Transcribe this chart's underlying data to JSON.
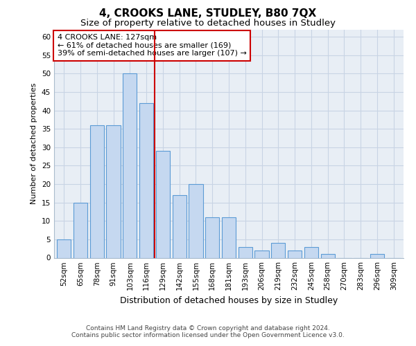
{
  "title1": "4, CROOKS LANE, STUDLEY, B80 7QX",
  "title2": "Size of property relative to detached houses in Studley",
  "xlabel": "Distribution of detached houses by size in Studley",
  "ylabel": "Number of detached properties",
  "categories": [
    "52sqm",
    "65sqm",
    "78sqm",
    "91sqm",
    "103sqm",
    "116sqm",
    "129sqm",
    "142sqm",
    "155sqm",
    "168sqm",
    "181sqm",
    "193sqm",
    "206sqm",
    "219sqm",
    "232sqm",
    "245sqm",
    "258sqm",
    "270sqm",
    "283sqm",
    "296sqm",
    "309sqm"
  ],
  "values": [
    5,
    15,
    36,
    36,
    50,
    42,
    29,
    17,
    20,
    11,
    11,
    3,
    2,
    4,
    2,
    3,
    1,
    0,
    0,
    1,
    0
  ],
  "bar_color": "#c5d8f0",
  "bar_edge_color": "#5b9bd5",
  "bg_color": "#e8eef5",
  "grid_color": "#c8d4e4",
  "annotation_text1": "4 CROOKS LANE: 127sqm",
  "annotation_text2": "← 61% of detached houses are smaller (169)",
  "annotation_text3": "39% of semi-detached houses are larger (107) →",
  "annotation_box_edge": "#cc0000",
  "vline_color": "#cc0000",
  "footer1": "Contains HM Land Registry data © Crown copyright and database right 2024.",
  "footer2": "Contains public sector information licensed under the Open Government Licence v3.0.",
  "ylim": [
    0,
    62
  ],
  "yticks": [
    0,
    5,
    10,
    15,
    20,
    25,
    30,
    35,
    40,
    45,
    50,
    55,
    60
  ],
  "title1_fontsize": 11,
  "title2_fontsize": 9.5,
  "xlabel_fontsize": 9,
  "ylabel_fontsize": 8,
  "tick_fontsize": 7.5,
  "footer_fontsize": 6.5,
  "annotation_fontsize": 8
}
